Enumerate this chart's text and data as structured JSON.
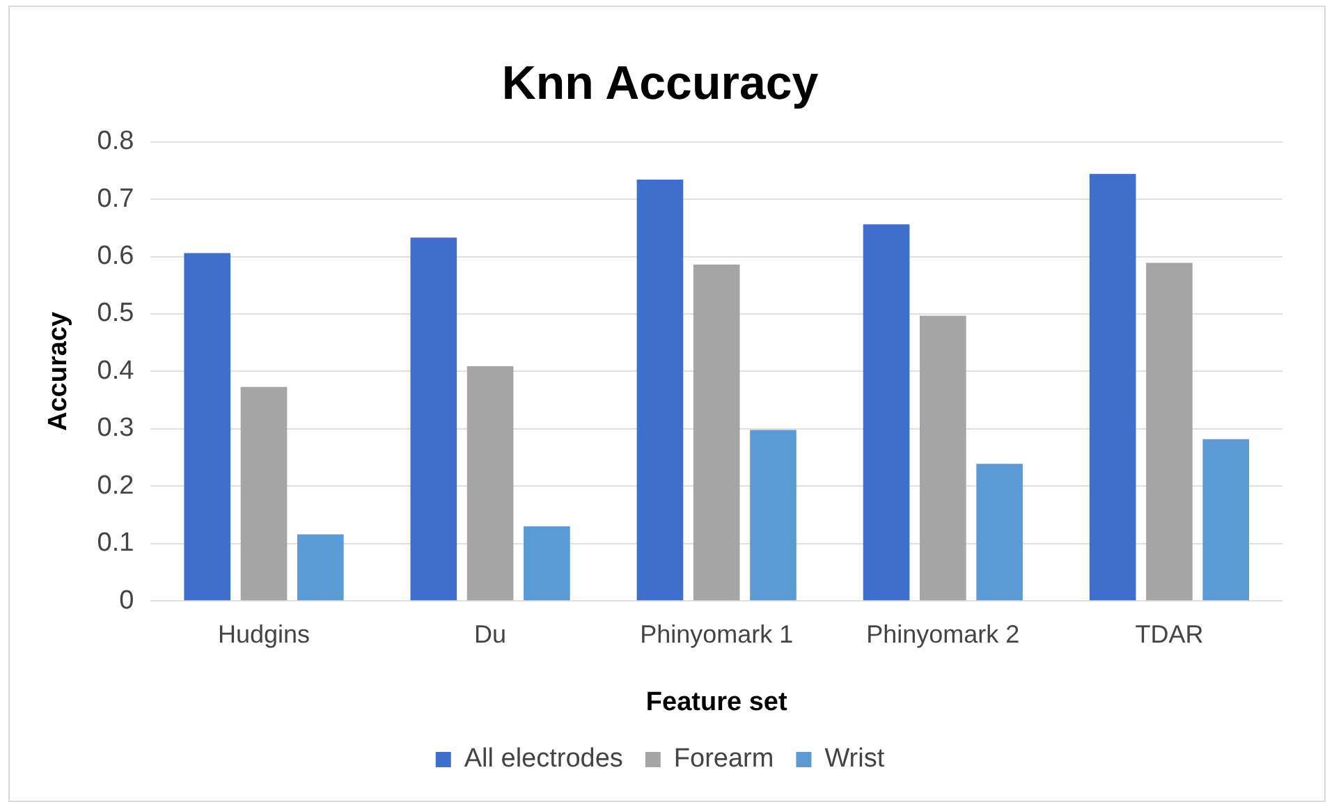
{
  "chart_data": {
    "type": "bar",
    "title": "Knn Accuracy",
    "xlabel": "Feature set",
    "ylabel": "Accuracy",
    "categories": [
      "Hudgins",
      "Du",
      "Phinyomark 1",
      "Phinyomark 2",
      "TDAR"
    ],
    "series": [
      {
        "name": "All electrodes",
        "color": "#3f6fcc",
        "values": [
          0.606,
          0.633,
          0.734,
          0.656,
          0.744
        ]
      },
      {
        "name": "Forearm",
        "color": "#a5a5a5",
        "values": [
          0.373,
          0.409,
          0.586,
          0.497,
          0.589
        ]
      },
      {
        "name": "Wrist",
        "color": "#5b9bd5",
        "values": [
          0.116,
          0.13,
          0.298,
          0.239,
          0.282
        ]
      }
    ],
    "ylim": [
      0,
      0.8
    ],
    "yticks": [
      0,
      0.1,
      0.2,
      0.3,
      0.4,
      0.5,
      0.6,
      0.7,
      0.8
    ],
    "grid": "y",
    "legend": "bottom"
  }
}
